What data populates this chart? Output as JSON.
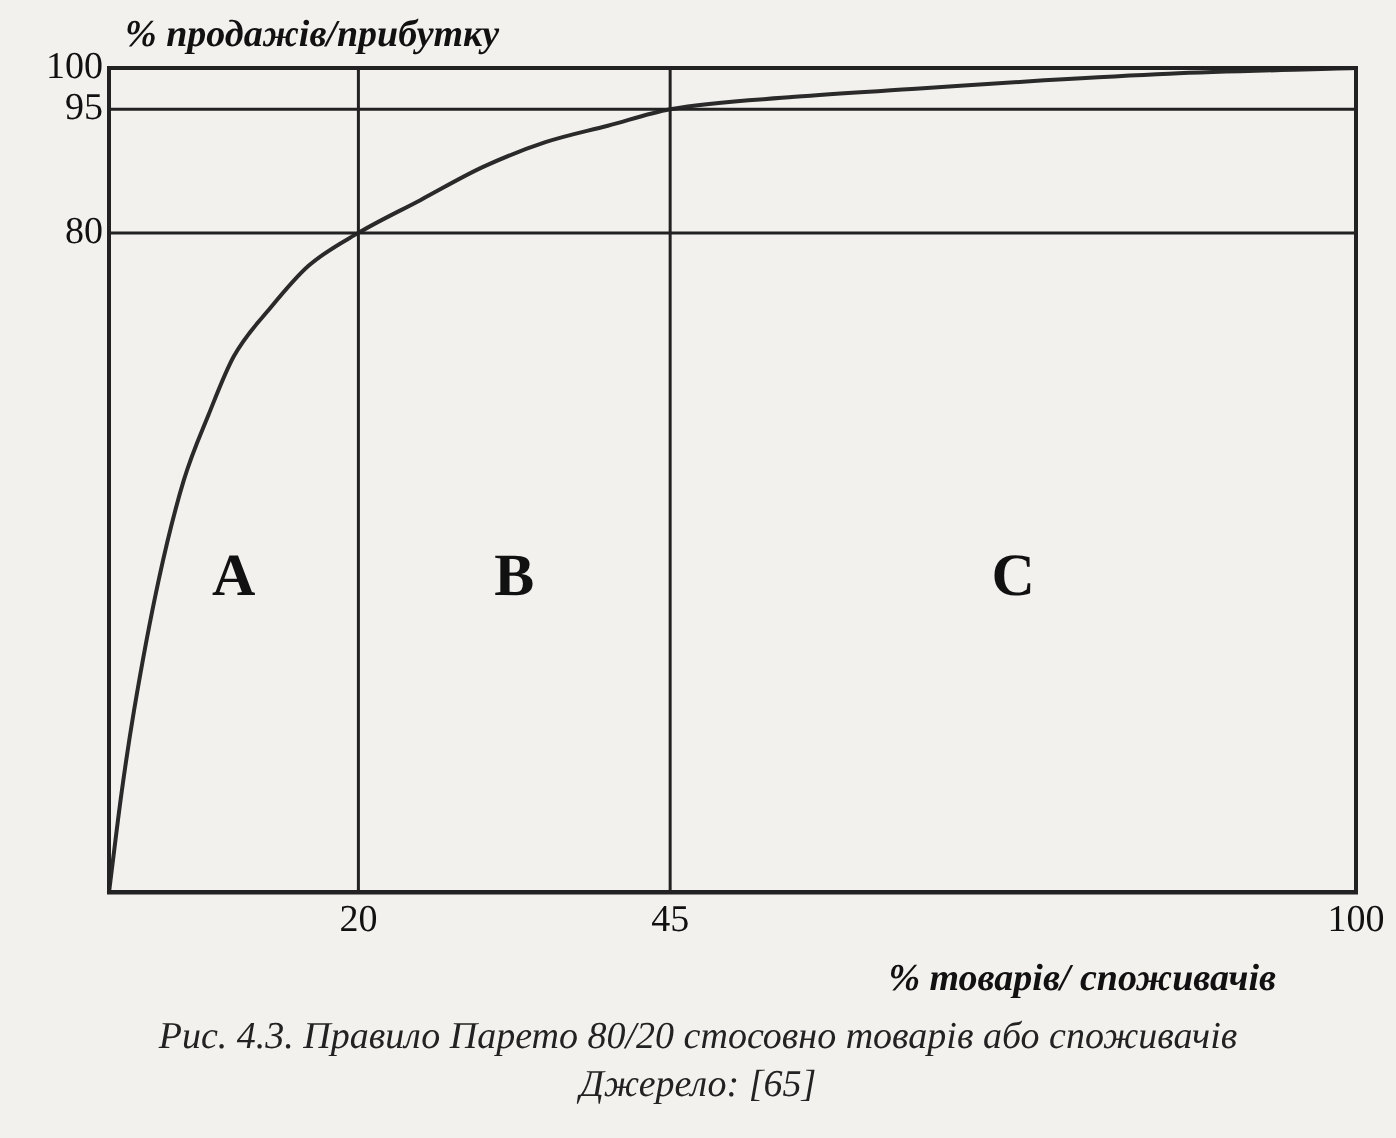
{
  "chart_data": {
    "type": "line",
    "title": "Рис. 4.3. Правило Парето 80/20 стосовно товарів або споживачів",
    "xlabel": "% товарів/ споживачів",
    "ylabel": "% продажів/прибутку",
    "x": [
      0,
      1,
      2,
      4,
      6,
      8,
      10,
      13,
      16,
      20,
      25,
      30,
      35,
      40,
      45,
      55,
      65,
      75,
      85,
      100
    ],
    "series": [
      {
        "color": "#2a2a2a",
        "values": [
          0,
          12,
          22,
          38,
          50,
          58,
          65,
          71,
          76,
          80,
          84,
          88,
          91,
          93,
          95,
          96.5,
          97.5,
          98.5,
          99.3,
          100
        ]
      }
    ],
    "xlim": [
      0,
      100
    ],
    "ylim": [
      0,
      100
    ],
    "xticks": [
      20,
      45,
      100
    ],
    "yticks": [
      80,
      95,
      100
    ],
    "legend": false,
    "marker": "none",
    "line_style": "solid",
    "ref_lines": [
      {
        "axis": "x",
        "value": 20
      },
      {
        "axis": "x",
        "value": 45
      },
      {
        "axis": "y",
        "value": 80
      },
      {
        "axis": "y",
        "value": 95
      }
    ],
    "annotations": [
      "A",
      "B",
      "C",
      "Джерело: [65]"
    ]
  }
}
